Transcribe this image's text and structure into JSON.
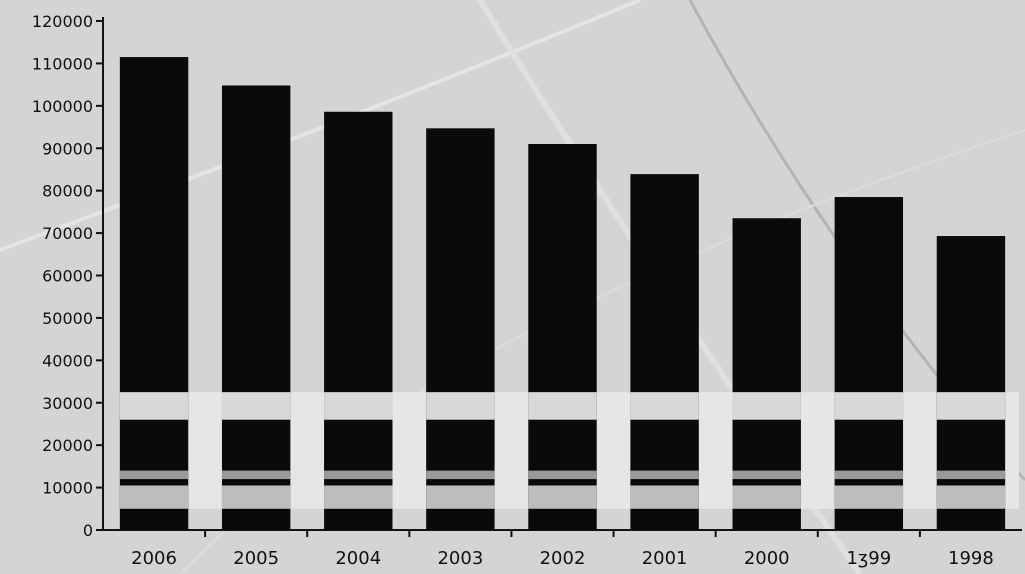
{
  "chart_data": {
    "type": "bar",
    "title": "",
    "xlabel": "",
    "ylabel": "",
    "categories": [
      "2006",
      "2005",
      "2004",
      "2003",
      "2002",
      "2001",
      "2000",
      "1999",
      "1998"
    ],
    "category_labels": [
      "2006",
      "2005",
      "2004",
      "2003",
      "2002",
      "2001",
      "2000",
      "1ʒ99",
      "1998"
    ],
    "values": [
      111500,
      104800,
      98600,
      94700,
      91000,
      83900,
      73500,
      78500,
      69300
    ],
    "ylim": [
      0,
      120000
    ],
    "yticks": [
      0,
      10000,
      20000,
      30000,
      40000,
      50000,
      60000,
      70000,
      80000,
      90000,
      100000,
      110000,
      120000
    ],
    "ytick_labels": [
      "0",
      "10000",
      "20000",
      "30000",
      "40000",
      "50000",
      "60000",
      "70000",
      "80000",
      "90000",
      "100000",
      "110000",
      "120000"
    ],
    "grid": false,
    "legend": "none",
    "colors": {
      "background": "#d4d4d4",
      "bar": "#0a0a0a",
      "axis": "#111111",
      "band": "#e6e6e6",
      "band_dark": "#9a9a9a"
    }
  }
}
